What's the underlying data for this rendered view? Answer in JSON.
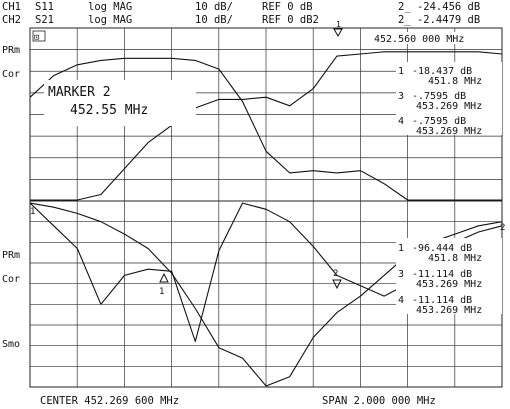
{
  "header": {
    "ch1": {
      "label": "CH1",
      "param": "S11",
      "format": "log MAG",
      "scale": "10 dB/",
      "ref": "REF 0 dB",
      "marker_readout": "2_ -24.456 dB"
    },
    "ch2": {
      "label": "CH2",
      "param": "S21",
      "format": "log MAG",
      "scale": "10 dB/",
      "ref": "REF 0 dB2",
      "marker_readout": "2_ -2.4479 dB"
    }
  },
  "top_panel": {
    "side_labels": [
      "PRm",
      "Cor"
    ],
    "badge": "⊡",
    "marker_title": "MARKER 2",
    "marker_freq": "452.55 MHz",
    "freq_readout": "452.560 000 MHz",
    "marker_list": [
      {
        "id": "1",
        "value": "-18.437 dB",
        "freq": "451.8 MHz"
      },
      {
        "id": "3",
        "value": "-.7595 dB",
        "freq": "453.269 MHz"
      },
      {
        "id": "4",
        "value": "-.7595 dB",
        "freq": "453.269 MHz"
      }
    ]
  },
  "bottom_panel": {
    "side_labels": [
      "PRm",
      "Cor",
      "Smo"
    ],
    "marker_list": [
      {
        "id": "1",
        "value": "-96.444 dB",
        "freq": "451.8 MHz"
      },
      {
        "id": "3",
        "value": "-11.114 dB",
        "freq": "453.269 MHz"
      },
      {
        "id": "4",
        "value": "-11.114 dB",
        "freq": "453.269 MHz"
      }
    ]
  },
  "footer": {
    "center": "CENTER 452.269 600 MHz",
    "span": "SPAN 2.000 000 MHz"
  },
  "trace_marker_labels": {
    "top_s21_marker": "1",
    "bottom_s21_marker": "1",
    "bottom_s11_marker": "2",
    "edge_left": "1",
    "edge_right": "2"
  },
  "chart_data": [
    {
      "type": "line",
      "title": "",
      "x_center_mhz": 452.2696,
      "x_span_mhz": 2.0,
      "xlim": [
        451.2696,
        453.2696
      ],
      "y_scale_db_per_div": 10,
      "grid": true,
      "series": [
        {
          "name": "S21",
          "x": [
            451.27,
            451.37,
            451.47,
            451.57,
            451.67,
            451.77,
            451.87,
            451.97,
            452.07,
            452.17,
            452.27,
            452.37,
            452.47,
            452.57,
            452.67,
            452.77,
            452.87,
            452.97,
            453.07,
            453.17,
            453.27
          ],
          "y": [
            -22,
            -12,
            -7,
            -5,
            -4,
            -4,
            -4,
            -5,
            -9,
            -24,
            -47,
            -57,
            -56,
            -57,
            -56,
            -62,
            -72,
            -75,
            -81,
            -86,
            -87
          ]
        },
        {
          "name": "S11",
          "x": [
            451.27,
            451.37,
            451.47,
            451.57,
            451.67,
            451.77,
            451.87,
            451.97,
            452.07,
            452.17,
            452.27,
            452.37,
            452.47,
            452.57,
            452.67,
            452.77,
            452.87,
            452.97,
            453.07,
            453.17,
            453.27
          ],
          "y": [
            -84,
            -83,
            -80,
            -67,
            -55,
            -43,
            -35,
            -27,
            -23,
            -23,
            -22,
            -26,
            -18,
            -3,
            -2,
            -1,
            -1,
            -1,
            -1,
            -1,
            -2
          ]
        }
      ]
    },
    {
      "type": "line",
      "title": "",
      "x_center_mhz": 452.2696,
      "x_span_mhz": 2.0,
      "xlim": [
        451.2696,
        453.2696
      ],
      "y_scale_db_per_div": 10,
      "grid": true,
      "series": [
        {
          "name": "S21",
          "x": [
            451.27,
            451.37,
            451.47,
            451.57,
            451.67,
            451.77,
            451.87,
            451.97,
            452.07,
            452.17,
            452.27,
            452.37,
            452.47,
            452.57,
            452.67,
            452.77,
            452.87,
            452.97,
            453.07,
            453.17,
            453.27
          ],
          "y": [
            -1,
            -3,
            -6,
            -10,
            -16,
            -23,
            -35,
            -52,
            -71,
            -76,
            -90,
            -85,
            -66,
            -54,
            -46,
            -36,
            -26,
            -20,
            -16,
            -12,
            -10
          ]
        },
        {
          "name": "S11",
          "x": [
            451.27,
            451.37,
            451.47,
            451.57,
            451.67,
            451.77,
            451.87,
            451.97,
            452.07,
            452.17,
            452.27,
            452.37,
            452.47,
            452.57,
            452.67,
            452.77,
            452.87,
            452.97,
            453.07,
            453.17,
            453.27
          ],
          "y": [
            -1,
            -12,
            -23,
            -50,
            -36,
            -33,
            -34,
            -68,
            -24,
            -1,
            -4,
            -10,
            -22,
            -36,
            -41,
            -46,
            -40,
            -25,
            -20,
            -15,
            -12
          ]
        }
      ]
    }
  ]
}
